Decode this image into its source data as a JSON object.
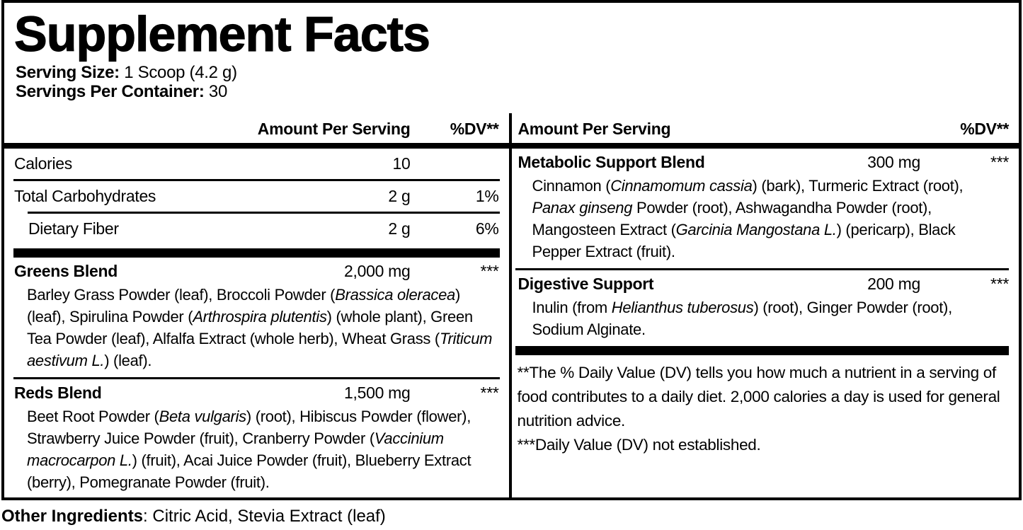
{
  "colors": {
    "ink": "#000000",
    "paper": "#ffffff"
  },
  "title": "Supplement Facts",
  "serving": {
    "size_label": "Serving Size:",
    "size_value": "1 Scoop (4.2 g)",
    "per_container_label": "Servings Per Container:",
    "per_container_value": "30"
  },
  "columns": {
    "left": {
      "header": {
        "amount": "Amount Per Serving",
        "dv": "%DV**"
      },
      "nutrients": [
        {
          "name": "Calories",
          "amount": "10",
          "dv": ""
        },
        {
          "name": "Total Carbohydrates",
          "amount": "2 g",
          "dv": "1%"
        },
        {
          "name": "Dietary Fiber",
          "amount": "2 g",
          "dv": "6%"
        }
      ],
      "blends": [
        {
          "name": "Greens Blend",
          "amount": "2,000 mg",
          "dv": "***",
          "ingredients": [
            {
              "text": "Barley Grass Powder (leaf), Broccoli Powder (",
              "italic": false
            },
            {
              "text": "Brassica oleracea",
              "italic": true
            },
            {
              "text": ") (leaf), Spirulina Powder (",
              "italic": false
            },
            {
              "text": "Arthrospira plutentis",
              "italic": true
            },
            {
              "text": ") (whole plant), Green Tea Powder (leaf), Alfalfa Extract (whole herb), Wheat Grass (",
              "italic": false
            },
            {
              "text": "Triticum aestivum L.",
              "italic": true
            },
            {
              "text": ") (leaf).",
              "italic": false
            }
          ]
        },
        {
          "name": "Reds Blend",
          "amount": "1,500 mg",
          "dv": "***",
          "ingredients": [
            {
              "text": "Beet Root Powder (",
              "italic": false
            },
            {
              "text": "Beta vulgaris",
              "italic": true
            },
            {
              "text": ") (root), Hibiscus Powder (flower), Strawberry Juice Powder (fruit), Cranberry Powder (",
              "italic": false
            },
            {
              "text": "Vaccinium macrocarpon L.",
              "italic": true
            },
            {
              "text": ") (fruit), Acai Juice Powder (fruit), Blueberry Extract (berry), Pomegranate Powder (fruit).",
              "italic": false
            }
          ]
        }
      ]
    },
    "right": {
      "header": {
        "amount": "Amount Per Serving",
        "dv": "%DV**"
      },
      "blends": [
        {
          "name": "Metabolic Support Blend",
          "amount": "300 mg",
          "dv": "***",
          "ingredients": [
            {
              "text": "Cinnamon (",
              "italic": false
            },
            {
              "text": "Cinnamomum cassia",
              "italic": true
            },
            {
              "text": ") (bark), Turmeric Extract (root), ",
              "italic": false
            },
            {
              "text": "Panax ginseng",
              "italic": true
            },
            {
              "text": " Powder (root), Ashwagandha Powder (root), Mangosteen Extract (",
              "italic": false
            },
            {
              "text": "Garcinia Mangostana L.",
              "italic": true
            },
            {
              "text": ") (pericarp), Black Pepper Extract (fruit).",
              "italic": false
            }
          ]
        },
        {
          "name": "Digestive Support",
          "amount": "200 mg",
          "dv": "***",
          "ingredients": [
            {
              "text": "Inulin (from ",
              "italic": false
            },
            {
              "text": "Helianthus tuberosus",
              "italic": true
            },
            {
              "text": ") (root), Ginger Powder (root), Sodium Alginate.",
              "italic": false
            }
          ]
        }
      ],
      "footnotes": [
        "**The % Daily Value (DV) tells you how much a nutrient in a serving of food contributes to a daily diet. 2,000 calories a day is used for general nutrition advice.",
        "***Daily Value (DV) not established."
      ]
    }
  },
  "other_ingredients": {
    "label": "Other Ingredients",
    "value": ": Citric Acid, Stevia Extract (leaf)"
  }
}
